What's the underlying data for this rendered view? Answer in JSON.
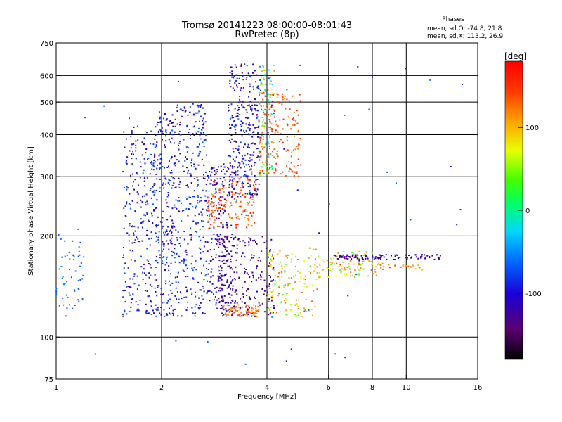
{
  "chart_data": {
    "type": "scatter",
    "title": "Tromsø 20141223 08:00:00-08:01:43",
    "subtitle": "RwPretec (8p)",
    "xlabel": "Frequency [MHz]",
    "ylabel": "Stationary phase Virtual Height [km]",
    "x_scale": "log",
    "y_scale": "log",
    "xlim": [
      1,
      16
    ],
    "ylim": [
      75,
      750
    ],
    "x_ticks": [
      1,
      2,
      4,
      6,
      8,
      10,
      16
    ],
    "x_tick_labels": [
      "1",
      "2",
      "4",
      "6",
      "8",
      "10",
      "16"
    ],
    "y_ticks": [
      75,
      100,
      200,
      300,
      400,
      500,
      600,
      750
    ],
    "y_tick_labels": [
      "75",
      "100",
      "200",
      "300",
      "400",
      "500",
      "600",
      "750"
    ],
    "x_grid": [
      2,
      4,
      6,
      8,
      10
    ],
    "y_grid": [
      100,
      200,
      300,
      400,
      500,
      600
    ],
    "grid": true,
    "stats": {
      "heading": "Phases",
      "o_line": "mean, sd,O: -74.8, 21.8",
      "x_line": "mean, sd,X: 113.2, 26.9"
    },
    "colorbar": {
      "label": "[deg]",
      "range": [
        -180,
        180
      ],
      "ticks": [
        -100,
        0,
        100
      ],
      "tick_labels": [
        "-100",
        "0",
        "100"
      ]
    },
    "clusters": [
      {
        "f": [
          1.0,
          1.2
        ],
        "h": [
          115,
          210
        ],
        "phase": [
          -80,
          -50
        ],
        "n": 55
      },
      {
        "f": [
          1.55,
          1.9
        ],
        "h": [
          115,
          430
        ],
        "phase": [
          -130,
          -60
        ],
        "n": 230
      },
      {
        "f": [
          1.9,
          2.2
        ],
        "h": [
          115,
          470
        ],
        "phase": [
          -130,
          -60
        ],
        "n": 280
      },
      {
        "f": [
          2.2,
          2.7
        ],
        "h": [
          115,
          500
        ],
        "phase": [
          -120,
          -55
        ],
        "n": 300
      },
      {
        "f": [
          2.7,
          3.2
        ],
        "h": [
          115,
          330
        ],
        "phase": [
          -140,
          -80
        ],
        "n": 220
      },
      {
        "f": [
          3.1,
          3.8
        ],
        "h": [
          260,
          650
        ],
        "phase": [
          -140,
          -70
        ],
        "n": 300
      },
      {
        "f": [
          3.8,
          4.2
        ],
        "h": [
          300,
          650
        ],
        "phase": [
          -90,
          160
        ],
        "n": 120
      },
      {
        "f": [
          3.8,
          5.0
        ],
        "h": [
          300,
          540
        ],
        "phase": [
          110,
          160
        ],
        "n": 150
      },
      {
        "f": [
          2.7,
          3.7
        ],
        "h": [
          210,
          300
        ],
        "phase": [
          110,
          160
        ],
        "n": 150
      },
      {
        "f": [
          2.9,
          4.2
        ],
        "h": [
          115,
          200
        ],
        "phase": [
          -150,
          -110
        ],
        "n": 220
      },
      {
        "f": [
          3.0,
          3.8
        ],
        "h": [
          115,
          125
        ],
        "phase": [
          100,
          140
        ],
        "n": 70
      },
      {
        "f": [
          4.0,
          5.6
        ],
        "h": [
          115,
          185
        ],
        "phase": [
          30,
          140
        ],
        "n": 140
      },
      {
        "f": [
          5.6,
          8.3
        ],
        "h": [
          150,
          180
        ],
        "phase": [
          20,
          130
        ],
        "n": 90
      },
      {
        "f": [
          6.2,
          12.6
        ],
        "h": [
          170,
          176
        ],
        "phase": [
          -140,
          -100
        ],
        "n": 110
      },
      {
        "f": [
          6.2,
          12.6
        ],
        "h": [
          158,
          166
        ],
        "phase": [
          80,
          150
        ],
        "n": 40
      },
      {
        "f": [
          1.2,
          15
        ],
        "h": [
          80,
          650
        ],
        "phase": [
          -120,
          -50
        ],
        "n": 60
      }
    ]
  }
}
